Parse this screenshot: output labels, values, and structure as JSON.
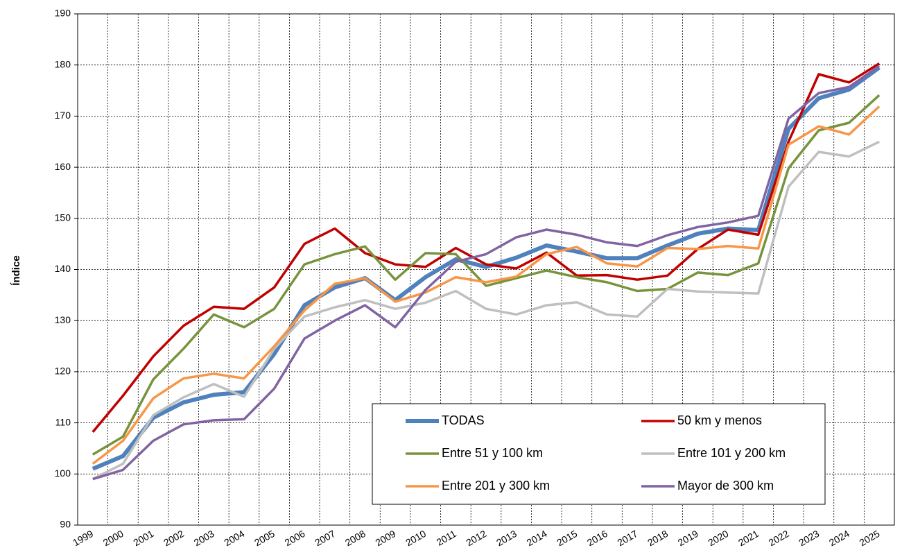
{
  "chart_data": {
    "type": "line",
    "y_label": "Índice",
    "categories": [
      "1999",
      "2000",
      "2001",
      "2002",
      "2003",
      "2004",
      "2005",
      "2006",
      "2007",
      "2008",
      "2009",
      "2010",
      "2011",
      "2012",
      "2013",
      "2014",
      "2015",
      "2016",
      "2017",
      "2018",
      "2019",
      "2020",
      "2021",
      "2022",
      "2023",
      "2024",
      "2025"
    ],
    "ylim": [
      90,
      190
    ],
    "yticks": [
      90,
      100,
      110,
      120,
      130,
      140,
      150,
      160,
      170,
      180,
      190
    ],
    "grid": true,
    "legend_position": "lower right",
    "series": [
      {
        "name": "TODAS",
        "color": "#4f81bd",
        "values": [
          101,
          103.5,
          111,
          114,
          115.5,
          116,
          123.5,
          133,
          136.5,
          138.3,
          134,
          138.5,
          142,
          140.5,
          142.3,
          144.7,
          143.5,
          142.2,
          142.2,
          144.7,
          147,
          148,
          147.7,
          167.5,
          173.5,
          175.2,
          179.5
        ]
      },
      {
        "name": "50 km y menos",
        "color": "#c00000",
        "values": [
          108.2,
          115.3,
          123,
          129,
          132.7,
          132.3,
          136.5,
          145,
          148,
          143.2,
          141,
          140.5,
          144.2,
          141,
          140.2,
          143.3,
          138.8,
          138.9,
          138,
          138.8,
          144,
          147.8,
          146.8,
          165,
          178.2,
          176.6,
          180.3
        ]
      },
      {
        "name": "Entre 51 y 100 km",
        "color": "#77933c",
        "values": [
          103.8,
          107.3,
          118.5,
          124.5,
          131.2,
          128.7,
          132.3,
          141,
          143,
          144.5,
          138,
          143.2,
          143,
          136.8,
          138.3,
          139.8,
          138.5,
          137.5,
          135.8,
          136.2,
          139.4,
          138.9,
          141.2,
          159.8,
          167.2,
          168.7,
          174.1
        ]
      },
      {
        "name": "Entre 101 y 200 km",
        "color": "#bfbfbf",
        "values": [
          99,
          102,
          111.5,
          115,
          117.6,
          115.1,
          124.5,
          130.8,
          132.6,
          134,
          132.3,
          133.5,
          135.8,
          132.3,
          131.2,
          133,
          133.6,
          131.2,
          130.8,
          136.2,
          135.7,
          135.5,
          135.3,
          156.2,
          163,
          162.1,
          165
        ]
      },
      {
        "name": "Entre 201 y 300 km",
        "color": "#f79646",
        "values": [
          102,
          106.5,
          114.8,
          118.7,
          119.6,
          118.7,
          125,
          132,
          137.2,
          138.3,
          133.7,
          135.5,
          138.5,
          137.5,
          138.6,
          143,
          144.4,
          141.2,
          140.6,
          144.2,
          144,
          144.6,
          144.1,
          164.4,
          168,
          166.4,
          171.9
        ]
      },
      {
        "name": "Mayor de 300 km",
        "color": "#8064a2",
        "values": [
          99,
          100.8,
          106.5,
          109.7,
          110.5,
          110.7,
          116.7,
          126.5,
          130,
          133,
          128.7,
          136,
          141.5,
          143,
          146.3,
          147.8,
          146.8,
          145.3,
          144.6,
          146.7,
          148.3,
          149.2,
          150.5,
          169.5,
          174.5,
          175.7,
          179.8
        ]
      }
    ]
  }
}
